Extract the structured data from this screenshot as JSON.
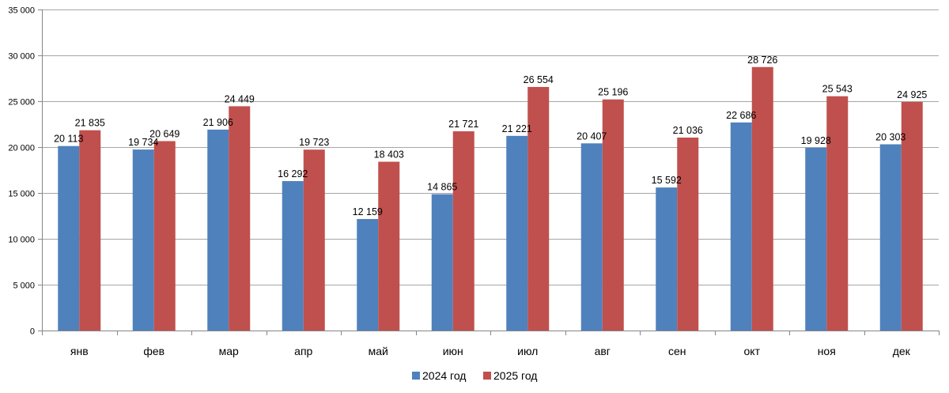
{
  "chart_data": {
    "type": "bar",
    "title": "",
    "xlabel": "",
    "ylabel": "",
    "ylim": [
      0,
      35000
    ],
    "ytick_step": 5000,
    "ytick_labels": [
      "0",
      "5 000",
      "10 000",
      "15 000",
      "20 000",
      "25 000",
      "30 000",
      "35 000"
    ],
    "grid": true,
    "legend_position": "bottom-center",
    "categories": [
      "янв",
      "фев",
      "мар",
      "апр",
      "май",
      "июн",
      "июл",
      "авг",
      "сен",
      "окт",
      "ноя",
      "дек"
    ],
    "series": [
      {
        "name": "2024 год",
        "color": "#4F81BD",
        "values": [
          20113,
          19734,
          21906,
          16292,
          12159,
          14865,
          21221,
          20407,
          15592,
          22686,
          19928,
          20303
        ],
        "labels": [
          "20 113",
          "19 734",
          "21 906",
          "16 292",
          "12 159",
          "14 865",
          "21 221",
          "20 407",
          "15 592",
          "22 686",
          "19 928",
          "20 303"
        ]
      },
      {
        "name": "2025 год",
        "color": "#C0504D",
        "values": [
          21835,
          20649,
          24449,
          19723,
          18403,
          21721,
          26554,
          25196,
          21036,
          28726,
          25543,
          24925
        ],
        "labels": [
          "21 835",
          "20 649",
          "24 449",
          "19 723",
          "18 403",
          "21 721",
          "26 554",
          "25 196",
          "21 036",
          "28 726",
          "25 543",
          "24 925"
        ]
      }
    ]
  }
}
